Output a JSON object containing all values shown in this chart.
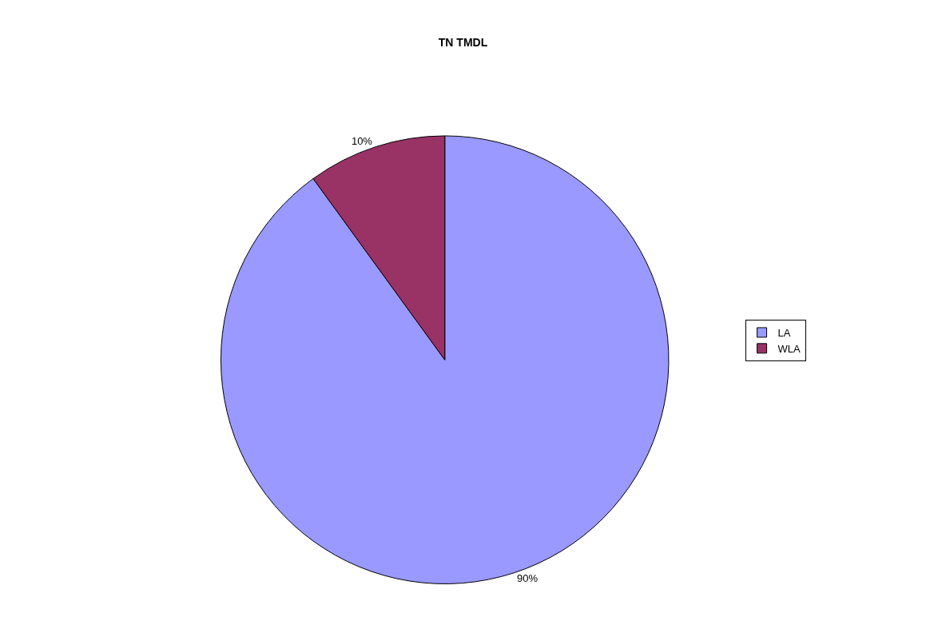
{
  "chart_data": {
    "type": "pie",
    "title": "TN TMDL",
    "categories": [
      "LA",
      "WLA"
    ],
    "values": [
      90,
      10
    ],
    "colors": [
      "#9999ff",
      "#993366"
    ],
    "value_labels": [
      "90%",
      "10%"
    ],
    "legend": "right"
  }
}
